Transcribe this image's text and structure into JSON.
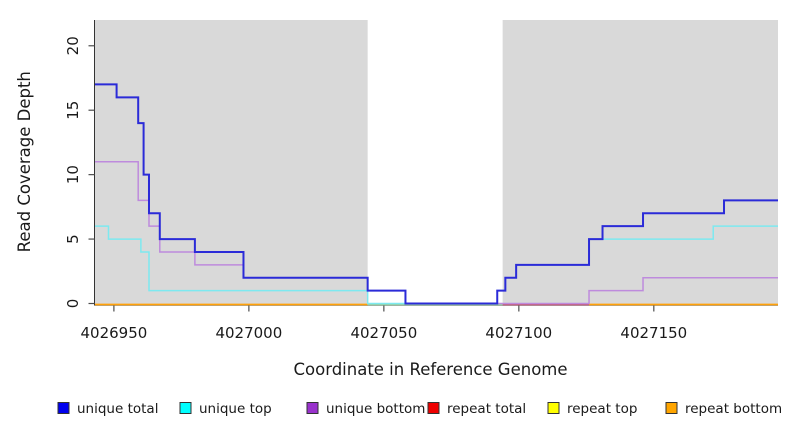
{
  "figure": {
    "xlabel": "Coordinate in Reference Genome",
    "ylabel": "Read Coverage Depth"
  },
  "chart_data": {
    "type": "line",
    "subtype": "step-after-coverage",
    "title": "",
    "xlabel": "Coordinate in Reference Genome",
    "ylabel": "Read Coverage Depth",
    "xlim": [
      4026943,
      4027196
    ],
    "ylim": [
      0,
      22
    ],
    "xticks": [
      4026950,
      4027000,
      4027050,
      4027100,
      4027150
    ],
    "yticks": [
      0,
      5,
      10,
      15,
      20
    ],
    "grid": false,
    "plot_bg": "#D9D9D9",
    "white_band": {
      "x0": 4027044,
      "x1": 4027094,
      "color": "#FFFFFF"
    },
    "series": [
      {
        "name": "unique bottom",
        "color": "#BE8BDD",
        "width": 1.5,
        "points": [
          [
            4026943,
            11
          ],
          [
            4026959,
            8
          ],
          [
            4026963,
            6
          ],
          [
            4026967,
            4
          ],
          [
            4026980,
            3
          ],
          [
            4026998,
            2
          ],
          [
            4027044,
            1
          ],
          [
            4027058,
            0
          ],
          [
            4027126,
            1
          ],
          [
            4027146,
            2
          ],
          [
            4027196,
            2
          ]
        ]
      },
      {
        "name": "unique top",
        "color": "#7DE9F0",
        "width": 1.5,
        "points": [
          [
            4026943,
            6
          ],
          [
            4026948,
            5
          ],
          [
            4026960,
            4
          ],
          [
            4026963,
            1
          ],
          [
            4027044,
            0
          ],
          [
            4027092,
            1
          ],
          [
            4027095,
            2
          ],
          [
            4027099,
            3
          ],
          [
            4027126,
            5
          ],
          [
            4027172,
            6
          ],
          [
            4027196,
            6
          ]
        ]
      },
      {
        "name": "unique total",
        "color": "#2B2BD8",
        "width": 2,
        "points": [
          [
            4026943,
            17
          ],
          [
            4026951,
            16
          ],
          [
            4026959,
            14
          ],
          [
            4026961,
            10
          ],
          [
            4026963,
            7
          ],
          [
            4026967,
            5
          ],
          [
            4026980,
            4
          ],
          [
            4026998,
            2
          ],
          [
            4027044,
            1
          ],
          [
            4027058,
            0
          ],
          [
            4027092,
            1
          ],
          [
            4027095,
            2
          ],
          [
            4027099,
            3
          ],
          [
            4027126,
            5
          ],
          [
            4027131,
            6
          ],
          [
            4027146,
            7
          ],
          [
            4027176,
            8
          ],
          [
            4027196,
            8
          ]
        ]
      },
      {
        "name": "repeat total",
        "color": "#C75A78",
        "width": 1.5,
        "points": [
          [
            4026943,
            0
          ],
          [
            4027196,
            0
          ]
        ]
      },
      {
        "name": "repeat top",
        "color": "#EDE85A",
        "width": 1.5,
        "points": [
          [
            4026943,
            0
          ],
          [
            4027196,
            0
          ]
        ]
      },
      {
        "name": "repeat bottom",
        "color": "#FFA10A",
        "width": 1.6,
        "points": [
          [
            4026943,
            0
          ],
          [
            4027196,
            0
          ]
        ]
      }
    ],
    "zero_line_segments": [
      {
        "color": "#FFA10A",
        "x0": 4026943,
        "x1": 4027044
      },
      {
        "color": "#97CFA0",
        "x0": 4027044,
        "x1": 4027094
      },
      {
        "color": "#C75A78",
        "x0": 4027094,
        "x1": 4027126
      },
      {
        "color": "#FFA10A",
        "x0": 4027126,
        "x1": 4027196
      }
    ],
    "legend_position": "bottom",
    "legend": [
      {
        "label": "unique total",
        "color": "#0000EE"
      },
      {
        "label": "unique top",
        "color": "#00FFFF"
      },
      {
        "label": "unique bottom",
        "color": "#9932CC"
      },
      {
        "label": "repeat total",
        "color": "#EE0000"
      },
      {
        "label": "repeat top",
        "color": "#FFFF00"
      },
      {
        "label": "repeat bottom",
        "color": "#FFA500"
      }
    ]
  }
}
